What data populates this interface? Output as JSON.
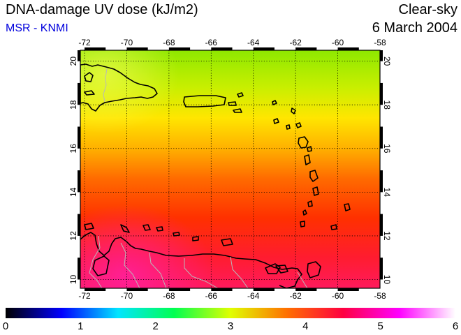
{
  "header": {
    "title": "DNA-damage UV dose (kJ/m2)",
    "subtitle": "MSR - KNMI",
    "condition": "Clear-sky",
    "date": "6 March 2004"
  },
  "map": {
    "lon_ticks": [
      "-72",
      "-70",
      "-68",
      "-66",
      "-64",
      "-62",
      "-60",
      "-58"
    ],
    "lat_ticks": [
      "10",
      "12",
      "14",
      "16",
      "18",
      "20"
    ],
    "lon_range": [
      -72.2,
      -58.0
    ],
    "lat_range": [
      9.6,
      20.5
    ],
    "field_colors_north_to_south": [
      "#8ee800",
      "#c8ef00",
      "#ffe600",
      "#ffb000",
      "#ff6a00",
      "#ff3000",
      "#ff1c30",
      "#ff1a5c"
    ],
    "field_stops_latitude": [
      20.5,
      18.8,
      17.4,
      16.0,
      14.6,
      12.8,
      11.0,
      9.6
    ]
  },
  "colorbar": {
    "tick_labels": [
      "0",
      "1",
      "2",
      "3",
      "4",
      "5",
      "6"
    ],
    "range": [
      0,
      6
    ],
    "colors": [
      "#000000",
      "#0000ff",
      "#00e5ff",
      "#00ff50",
      "#e0ff00",
      "#ff7000",
      "#ff0040",
      "#ff00ff",
      "#ffffff"
    ]
  }
}
